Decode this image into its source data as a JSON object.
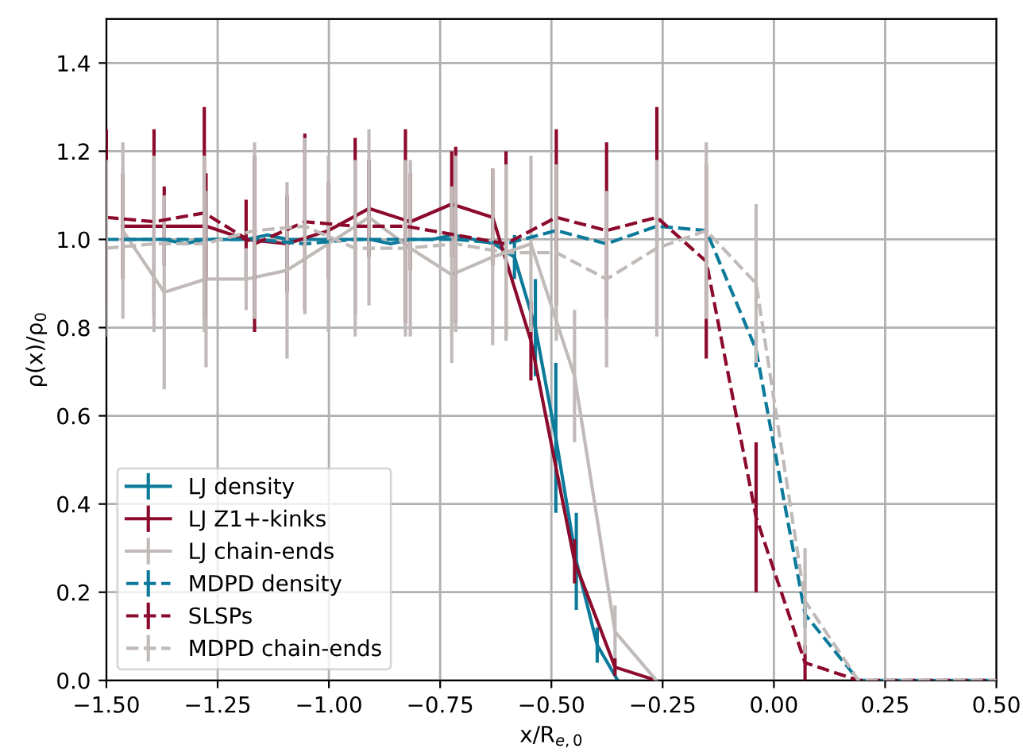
{
  "chart_data": {
    "type": "line",
    "xlabel": "x/R$_{e,0}$",
    "ylabel": "ρ(x)/ρ$_{0}$",
    "xlim": [
      -1.5,
      0.5
    ],
    "ylim": [
      0,
      1.5
    ],
    "xticks": [
      {
        "value": -1.5,
        "label": "−1.50"
      },
      {
        "value": -1.25,
        "label": "−1.25"
      },
      {
        "value": -1.0,
        "label": "−1.00"
      },
      {
        "value": -0.75,
        "label": "−0.75"
      },
      {
        "value": -0.5,
        "label": "−0.50"
      },
      {
        "value": -0.25,
        "label": "−0.25"
      },
      {
        "value": 0.0,
        "label": "0.00"
      },
      {
        "value": 0.25,
        "label": "0.25"
      },
      {
        "value": 0.5,
        "label": "0.50"
      }
    ],
    "yticks": [
      {
        "value": 0.0,
        "label": "0.0"
      },
      {
        "value": 0.2,
        "label": "0.2"
      },
      {
        "value": 0.4,
        "label": "0.4"
      },
      {
        "value": 0.6,
        "label": "0.6"
      },
      {
        "value": 0.8,
        "label": "0.8"
      },
      {
        "value": 1.0,
        "label": "1.0"
      },
      {
        "value": 1.2,
        "label": "1.2"
      },
      {
        "value": 1.4,
        "label": "1.4"
      }
    ],
    "grid": true,
    "legend": "bottom left",
    "marker": "none",
    "series": [
      {
        "name": "LJ density",
        "color": "#0c7a9a",
        "line_style": "solid",
        "x": [
          -1.463,
          -1.417,
          -1.37,
          -1.324,
          -1.278,
          -1.231,
          -1.185,
          -1.139,
          -1.092,
          -1.046,
          -1.0,
          -0.953,
          -0.907,
          -0.861,
          -0.814,
          -0.768,
          -0.722,
          -0.675,
          -0.629,
          -0.583,
          -0.536,
          -0.49,
          -0.444,
          -0.397,
          -0.351
        ],
        "values": [
          1.0,
          1.0,
          1.0,
          0.99,
          1.0,
          1.0,
          1.0,
          1.01,
          1.0,
          1.0,
          1.0,
          1.0,
          1.0,
          0.99,
          1.0,
          1.0,
          1.01,
          1.0,
          0.99,
          0.96,
          0.8,
          0.55,
          0.27,
          0.08,
          0.0
        ],
        "errors": [
          null,
          null,
          null,
          null,
          null,
          null,
          null,
          null,
          null,
          null,
          null,
          null,
          null,
          null,
          null,
          null,
          null,
          null,
          null,
          0.05,
          0.11,
          0.17,
          0.11,
          0.04,
          null
        ]
      },
      {
        "name": "LJ Z1+-kinks",
        "color": "#8c0a2c",
        "line_style": "solid",
        "x": [
          -1.463,
          -1.37,
          -1.276,
          -1.186,
          -1.094,
          -1.001,
          -0.91,
          -0.817,
          -0.724,
          -0.632,
          -0.546,
          -0.448,
          -0.357,
          -0.264
        ],
        "values": [
          1.03,
          1.03,
          1.03,
          1.0,
          0.99,
          1.02,
          1.07,
          1.04,
          1.08,
          1.05,
          0.77,
          0.27,
          0.03,
          0.0
        ],
        "errors": [
          0.12,
          0.09,
          0.12,
          0.09,
          0.11,
          0.11,
          0.11,
          0.11,
          0.12,
          0.11,
          0.09,
          0.05,
          0.02,
          null
        ]
      },
      {
        "name": "LJ chain-ends",
        "color": "#c0bab8",
        "line_style": "solid",
        "x": [
          -1.463,
          -1.37,
          -1.276,
          -1.186,
          -1.094,
          -1.001,
          -0.91,
          -0.817,
          -0.724,
          -0.632,
          -0.546,
          -0.448,
          -0.357,
          -0.264
        ],
        "values": [
          1.02,
          0.88,
          0.91,
          0.91,
          0.93,
          0.99,
          1.05,
          0.98,
          0.92,
          0.96,
          0.99,
          0.69,
          0.11,
          0.0
        ],
        "errors": [
          0.2,
          0.22,
          0.2,
          0.07,
          0.2,
          0.2,
          0.2,
          0.2,
          0.2,
          0.2,
          0.2,
          0.15,
          0.06,
          null
        ]
      },
      {
        "name": "MDPD density",
        "color": "#0c7a9a",
        "line_style": "dashed",
        "x": [
          -1.5,
          -1.393,
          -1.28,
          -1.167,
          -1.054,
          -0.941,
          -0.828,
          -0.715,
          -0.602,
          -0.489,
          -0.376,
          -0.263,
          -0.152,
          -0.04,
          0.07,
          0.19,
          0.3,
          0.41,
          0.5
        ],
        "values": [
          1.0,
          1.0,
          1.0,
          1.0,
          0.99,
          1.0,
          1.0,
          1.0,
          0.99,
          1.02,
          0.99,
          1.03,
          1.02,
          0.75,
          0.15,
          0.0,
          0.0,
          0.0,
          0.0
        ],
        "errors": [
          null,
          null,
          null,
          null,
          null,
          null,
          null,
          null,
          null,
          null,
          null,
          null,
          null,
          0.04,
          0.03,
          null,
          null,
          null,
          null
        ]
      },
      {
        "name": "SLSPs",
        "color": "#8c0a2c",
        "line_style": "dashed",
        "x": [
          -1.5,
          -1.393,
          -1.28,
          -1.167,
          -1.054,
          -0.941,
          -0.828,
          -0.715,
          -0.602,
          -0.489,
          -0.376,
          -0.263,
          -0.152,
          -0.04,
          0.07,
          0.19,
          0.3,
          0.41,
          0.5
        ],
        "values": [
          1.05,
          1.04,
          1.06,
          0.99,
          1.04,
          1.03,
          1.03,
          1.01,
          0.99,
          1.05,
          1.02,
          1.05,
          0.95,
          0.37,
          0.04,
          0.0,
          0.0,
          0.0,
          0.0
        ],
        "errors": [
          0.2,
          0.21,
          0.24,
          0.2,
          0.2,
          0.2,
          0.22,
          0.2,
          0.21,
          0.2,
          0.2,
          0.25,
          0.22,
          0.17,
          0.04,
          null,
          null,
          null,
          null
        ]
      },
      {
        "name": "MDPD chain-ends",
        "color": "#c0bab8",
        "line_style": "dashed",
        "x": [
          -1.5,
          -1.393,
          -1.28,
          -1.167,
          -1.054,
          -0.941,
          -0.828,
          -0.715,
          -0.602,
          -0.489,
          -0.376,
          -0.263,
          -0.152,
          -0.04,
          0.07,
          0.19,
          0.3,
          0.41,
          0.5
        ],
        "values": [
          0.98,
          0.99,
          0.99,
          1.02,
          1.03,
          0.98,
          0.98,
          0.99,
          0.97,
          0.97,
          0.91,
          0.98,
          1.02,
          0.9,
          0.18,
          0.0,
          0.0,
          0.0,
          0.0
        ],
        "errors": [
          0.2,
          0.2,
          0.2,
          0.2,
          0.2,
          0.2,
          0.2,
          0.2,
          0.2,
          0.2,
          0.2,
          0.2,
          0.2,
          0.18,
          0.12,
          null,
          null,
          null,
          null
        ]
      }
    ]
  }
}
